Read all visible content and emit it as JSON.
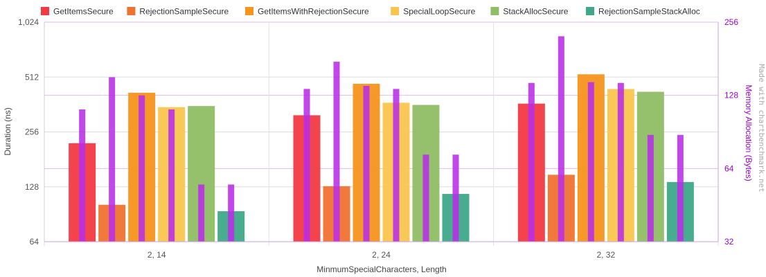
{
  "chart_data": {
    "type": "bar",
    "categories": [
      "2, 14",
      "2, 24",
      "2, 32"
    ],
    "xlabel": "MinmumSpecialCharacters, Length",
    "ylabel": "Duration (ns)",
    "y2label": "Memory Allocation (Bytes)",
    "yscale": "log2",
    "ylim": [
      64,
      1024
    ],
    "yticks": [
      64,
      128,
      256,
      512,
      1024
    ],
    "ytick_labels": [
      "64",
      "128",
      "256",
      "512",
      "1,024"
    ],
    "y2scale": "log2",
    "y2lim": [
      32,
      256
    ],
    "y2ticks": [
      32,
      64,
      128,
      256
    ],
    "y2tick_labels": [
      "32",
      "64",
      "128",
      "256"
    ],
    "grid": true,
    "legend_position": "top",
    "watermark": "Made with chartbenchmark.net",
    "allocation_color": "#b82ee8",
    "series": [
      {
        "name": "GetItemsSecure",
        "color": "#f23a44",
        "values": [
          222,
          316,
          366
        ],
        "allocated": [
          112,
          136,
          144
        ]
      },
      {
        "name": "RejectionSampleSecure",
        "color": "#f07230",
        "values": [
          102,
          129,
          149
        ],
        "allocated": [
          152,
          176,
          224
        ]
      },
      {
        "name": "GetItemsWithRejectionSecure",
        "color": "#f7941d",
        "values": [
          420,
          470,
          530
        ],
        "allocated": [
          128,
          140,
          145
        ]
      },
      {
        "name": "SpecialLoopSecure",
        "color": "#f9c54d",
        "values": [
          350,
          370,
          440
        ],
        "allocated": [
          112,
          136,
          144
        ]
      },
      {
        "name": "StackAllocSecure",
        "color": "#8fbe65",
        "values": [
          355,
          360,
          425
        ],
        "allocated": [
          55,
          73,
          88
        ]
      },
      {
        "name": "RejectionSampleStackAlloc",
        "color": "#3ea889",
        "values": [
          94,
          117,
          136
        ],
        "allocated": [
          55,
          73,
          88
        ]
      }
    ]
  }
}
